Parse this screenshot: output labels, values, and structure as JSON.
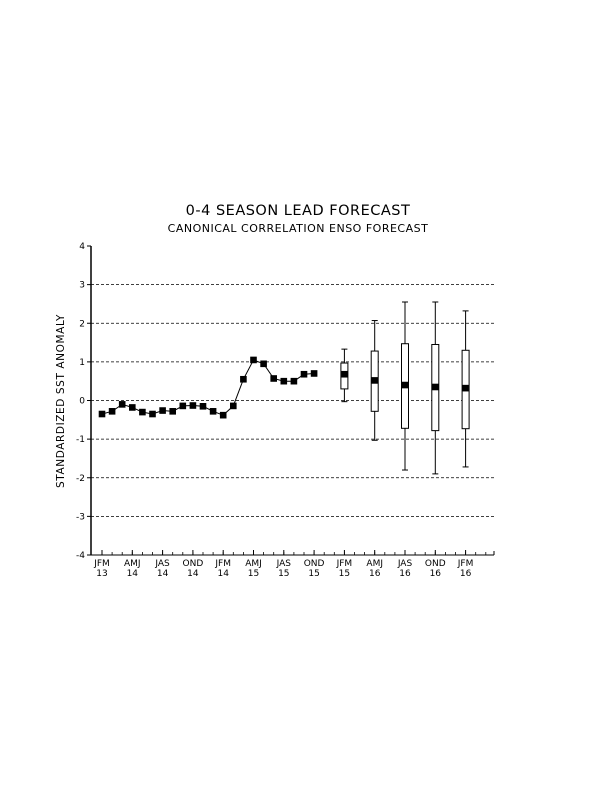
{
  "chart_data": {
    "type": "line",
    "title": "0-4 SEASON LEAD FORECAST",
    "subtitle": "CANONICAL CORRELATION ENSO FORECAST",
    "xlabel": "",
    "ylabel": "STANDARDIZED SST ANOMALY",
    "ylim": [
      -4,
      4
    ],
    "y_ticks": [
      "4",
      "3",
      "2",
      "1",
      "0",
      "-1",
      "-2",
      "-3",
      "-4"
    ],
    "y_tick_values": [
      4,
      3,
      2,
      1,
      0,
      -1,
      -2,
      -3,
      -4
    ],
    "grid": "dashed horizontal lines at integer values",
    "x_tick_labels": [
      {
        "season": "JFM",
        "year": "13"
      },
      {
        "season": "AMJ",
        "year": "14"
      },
      {
        "season": "JAS",
        "year": "14"
      },
      {
        "season": "OND",
        "year": "14"
      },
      {
        "season": "JFM",
        "year": "14"
      },
      {
        "season": "AMJ",
        "year": "15"
      },
      {
        "season": "JAS",
        "year": "15"
      },
      {
        "season": "OND",
        "year": "15"
      },
      {
        "season": "JFM",
        "year": "15"
      },
      {
        "season": "AMJ",
        "year": "16"
      },
      {
        "season": "JAS",
        "year": "16"
      },
      {
        "season": "OND",
        "year": "16"
      },
      {
        "season": "JFM",
        "year": "16"
      }
    ],
    "observed": {
      "marker": "filled square",
      "segments": [
        [
          -0.35,
          -0.28,
          -0.1,
          -0.18,
          -0.3,
          -0.35,
          -0.26,
          -0.28,
          -0.14,
          -0.13,
          -0.15,
          -0.28,
          -0.38,
          -0.14,
          0.55,
          1.05,
          0.95,
          0.57,
          0.5,
          0.5,
          0.68,
          0.7
        ],
        [
          0.68
        ]
      ],
      "segment_start_index": [
        0,
        24
      ]
    },
    "forecasts": [
      {
        "index": 24,
        "mean": 0.68,
        "box_low": 0.3,
        "box_high": 0.97,
        "whisker_low": -0.03,
        "whisker_high": 1.33
      },
      {
        "index": 27,
        "mean": 0.52,
        "box_low": -0.28,
        "box_high": 1.28,
        "whisker_low": -1.03,
        "whisker_high": 2.07
      },
      {
        "index": 30,
        "mean": 0.4,
        "box_low": -0.72,
        "box_high": 1.47,
        "whisker_low": -1.8,
        "whisker_high": 2.55
      },
      {
        "index": 33,
        "mean": 0.35,
        "box_low": -0.78,
        "box_high": 1.45,
        "whisker_low": -1.9,
        "whisker_high": 2.55
      },
      {
        "index": 36,
        "mean": 0.32,
        "box_low": -0.73,
        "box_high": 1.3,
        "whisker_low": -1.72,
        "whisker_high": 2.32
      }
    ],
    "colors": {
      "line": "#000000",
      "box_fill": "#ffffff",
      "grid": "#000000"
    }
  }
}
